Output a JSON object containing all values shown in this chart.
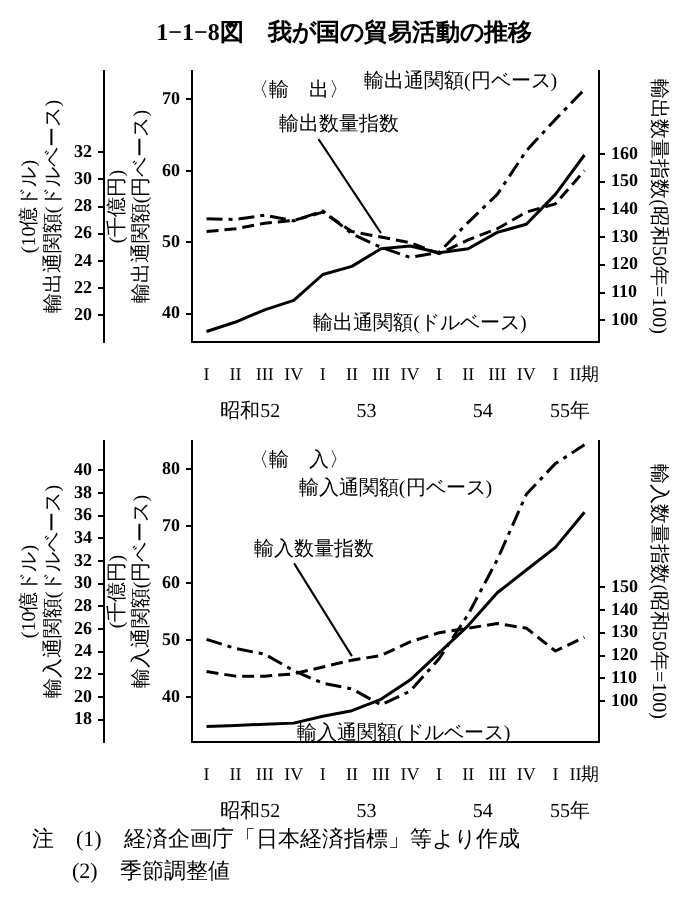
{
  "chart_data": [
    {
      "type": "line",
      "title": "1−1−8図　我が国の貿易活動の推移",
      "subtitle": "〈輸　出〉",
      "categories": [
        "I",
        "II",
        "III",
        "IV",
        "I",
        "II",
        "III",
        "IV",
        "I",
        "II",
        "III",
        "IV",
        "I",
        "II期"
      ],
      "ylabel": "(千億円) 輸出通関額(円ベース)",
      "y2label": "(10億ドル) 輸出通関額(ドルベース)",
      "y3label": "輸出数量指数(昭和50年=100)",
      "ylim": [
        36,
        74
      ],
      "yticks": [
        40,
        50,
        60,
        70
      ],
      "y2lim": [
        18,
        38
      ],
      "y2ticks": [
        20,
        22,
        24,
        26,
        28,
        30,
        32
      ],
      "y3lim": [
        92,
        190
      ],
      "y3ticks": [
        100,
        110,
        120,
        130,
        140,
        150,
        160
      ],
      "marker": "none",
      "annotations": [
        "昭和52",
        "53",
        "54",
        "55年"
      ],
      "series": [
        {
          "name": "輸出通関額(円ベース)",
          "color": "#000000",
          "axis": "y",
          "line_style": "dashdot",
          "values": [
            53.3,
            53.2,
            53.8,
            53.0,
            54.4,
            51.2,
            49.3,
            47.9,
            48.6,
            52.8,
            56.7,
            62.8,
            67.2,
            71.4
          ]
        },
        {
          "name": "輸出通関額(ドルベース)",
          "color": "#000000",
          "axis": "y2",
          "line_style": "solid",
          "values": [
            18.8,
            19.5,
            20.4,
            21.1,
            23.0,
            23.6,
            24.9,
            25.1,
            24.6,
            24.9,
            26.1,
            26.7,
            28.9,
            31.8
          ]
        },
        {
          "name": "輸出数量指数",
          "color": "#000000",
          "axis": "y3",
          "line_style": "dashed",
          "values": [
            132,
            133,
            135,
            136,
            139,
            132,
            130,
            128,
            124,
            129,
            133,
            139,
            142,
            154
          ]
        }
      ]
    },
    {
      "type": "line",
      "subtitle": "〈輸　入〉",
      "categories": [
        "I",
        "II",
        "III",
        "IV",
        "I",
        "II",
        "III",
        "IV",
        "I",
        "II",
        "III",
        "IV",
        "I",
        "II期"
      ],
      "ylabel": "(千億円) 輸入通関額(円ベース)",
      "y2label": "(10億ドル) 輸入通関額(ドルベース)",
      "y3label": "輸入数量指数(昭和50年=100)",
      "ylim": [
        32,
        85
      ],
      "yticks": [
        40,
        50,
        60,
        70,
        80
      ],
      "y2lim": [
        16,
        42.6
      ],
      "y2ticks": [
        18,
        20,
        22,
        24,
        26,
        28,
        30,
        32,
        34,
        36,
        38,
        40
      ],
      "y3lim": [
        82,
        214
      ],
      "y3ticks": [
        100,
        110,
        120,
        130,
        140,
        150
      ],
      "marker": "none",
      "annotations": [
        "昭和52",
        "53",
        "54",
        "55年",
        "注　(1)　経済企画庁「日本経済指標」等より作成",
        "(2)　季節調整値"
      ],
      "series": [
        {
          "name": "輸入通関額(円ベース)",
          "color": "#000000",
          "axis": "y",
          "line_style": "dashdot",
          "values": [
            50.1,
            48.5,
            47.5,
            44.6,
            42.4,
            41.4,
            38.6,
            41.0,
            46.7,
            54.5,
            64.1,
            75.6,
            81.0,
            84.3
          ]
        },
        {
          "name": "輸入通関額(ドルベース)",
          "color": "#000000",
          "axis": "y2",
          "line_style": "solid",
          "values": [
            17.4,
            17.5,
            17.6,
            17.7,
            18.3,
            18.8,
            19.8,
            21.5,
            23.9,
            26.3,
            29.2,
            31.2,
            33.2,
            36.3
          ]
        },
        {
          "name": "輸入数量指数",
          "color": "#000000",
          "axis": "y3",
          "line_style": "dashed",
          "values": [
            113,
            111,
            111,
            112,
            115,
            118,
            120,
            126,
            130,
            132,
            134,
            132,
            122,
            128
          ]
        }
      ]
    }
  ]
}
